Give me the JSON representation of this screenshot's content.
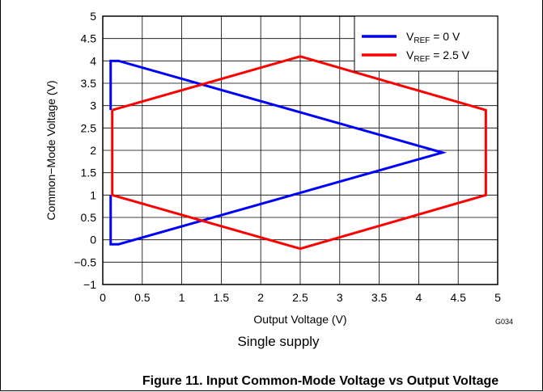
{
  "chart_data": {
    "type": "line",
    "xlabel": "Output Voltage (V)",
    "ylabel": "Common−Mode Voltage (V)",
    "xlim": [
      0,
      5
    ],
    "ylim": [
      -1,
      5
    ],
    "xticks": [
      "0",
      "0.5",
      "1",
      "1.5",
      "2",
      "2.5",
      "3",
      "3.5",
      "4",
      "4.5",
      "5"
    ],
    "yticks": [
      "5",
      "4.5",
      "4",
      "3.5",
      "3",
      "2.5",
      "2",
      "1.5",
      "1",
      "0.5",
      "0",
      "−0.5",
      "−1"
    ],
    "grid": true,
    "legend_position": "top-right",
    "series": [
      {
        "name_main": "V",
        "name_sub": "REF",
        "name_rest": " = 0 V",
        "color": "#0000ff",
        "x": [
          0.1,
          0.1,
          0.2,
          4.3,
          0.2,
          0.1,
          0.1
        ],
        "y": [
          2.9,
          4.0,
          4.0,
          1.95,
          -0.1,
          -0.1,
          1.0
        ]
      },
      {
        "name_main": "V",
        "name_sub": "REF",
        "name_rest": " = 2.5 V",
        "color": "#ff0000",
        "x": [
          0.12,
          2.5,
          4.85,
          4.85,
          2.5,
          0.12,
          0.12
        ],
        "y": [
          2.9,
          4.1,
          2.9,
          1.0,
          -0.2,
          1.0,
          2.9
        ]
      }
    ],
    "code": "G034",
    "subtitle": "Single supply"
  },
  "figure_caption": "Figure 11. Input Common-Mode Voltage vs Output Voltage"
}
